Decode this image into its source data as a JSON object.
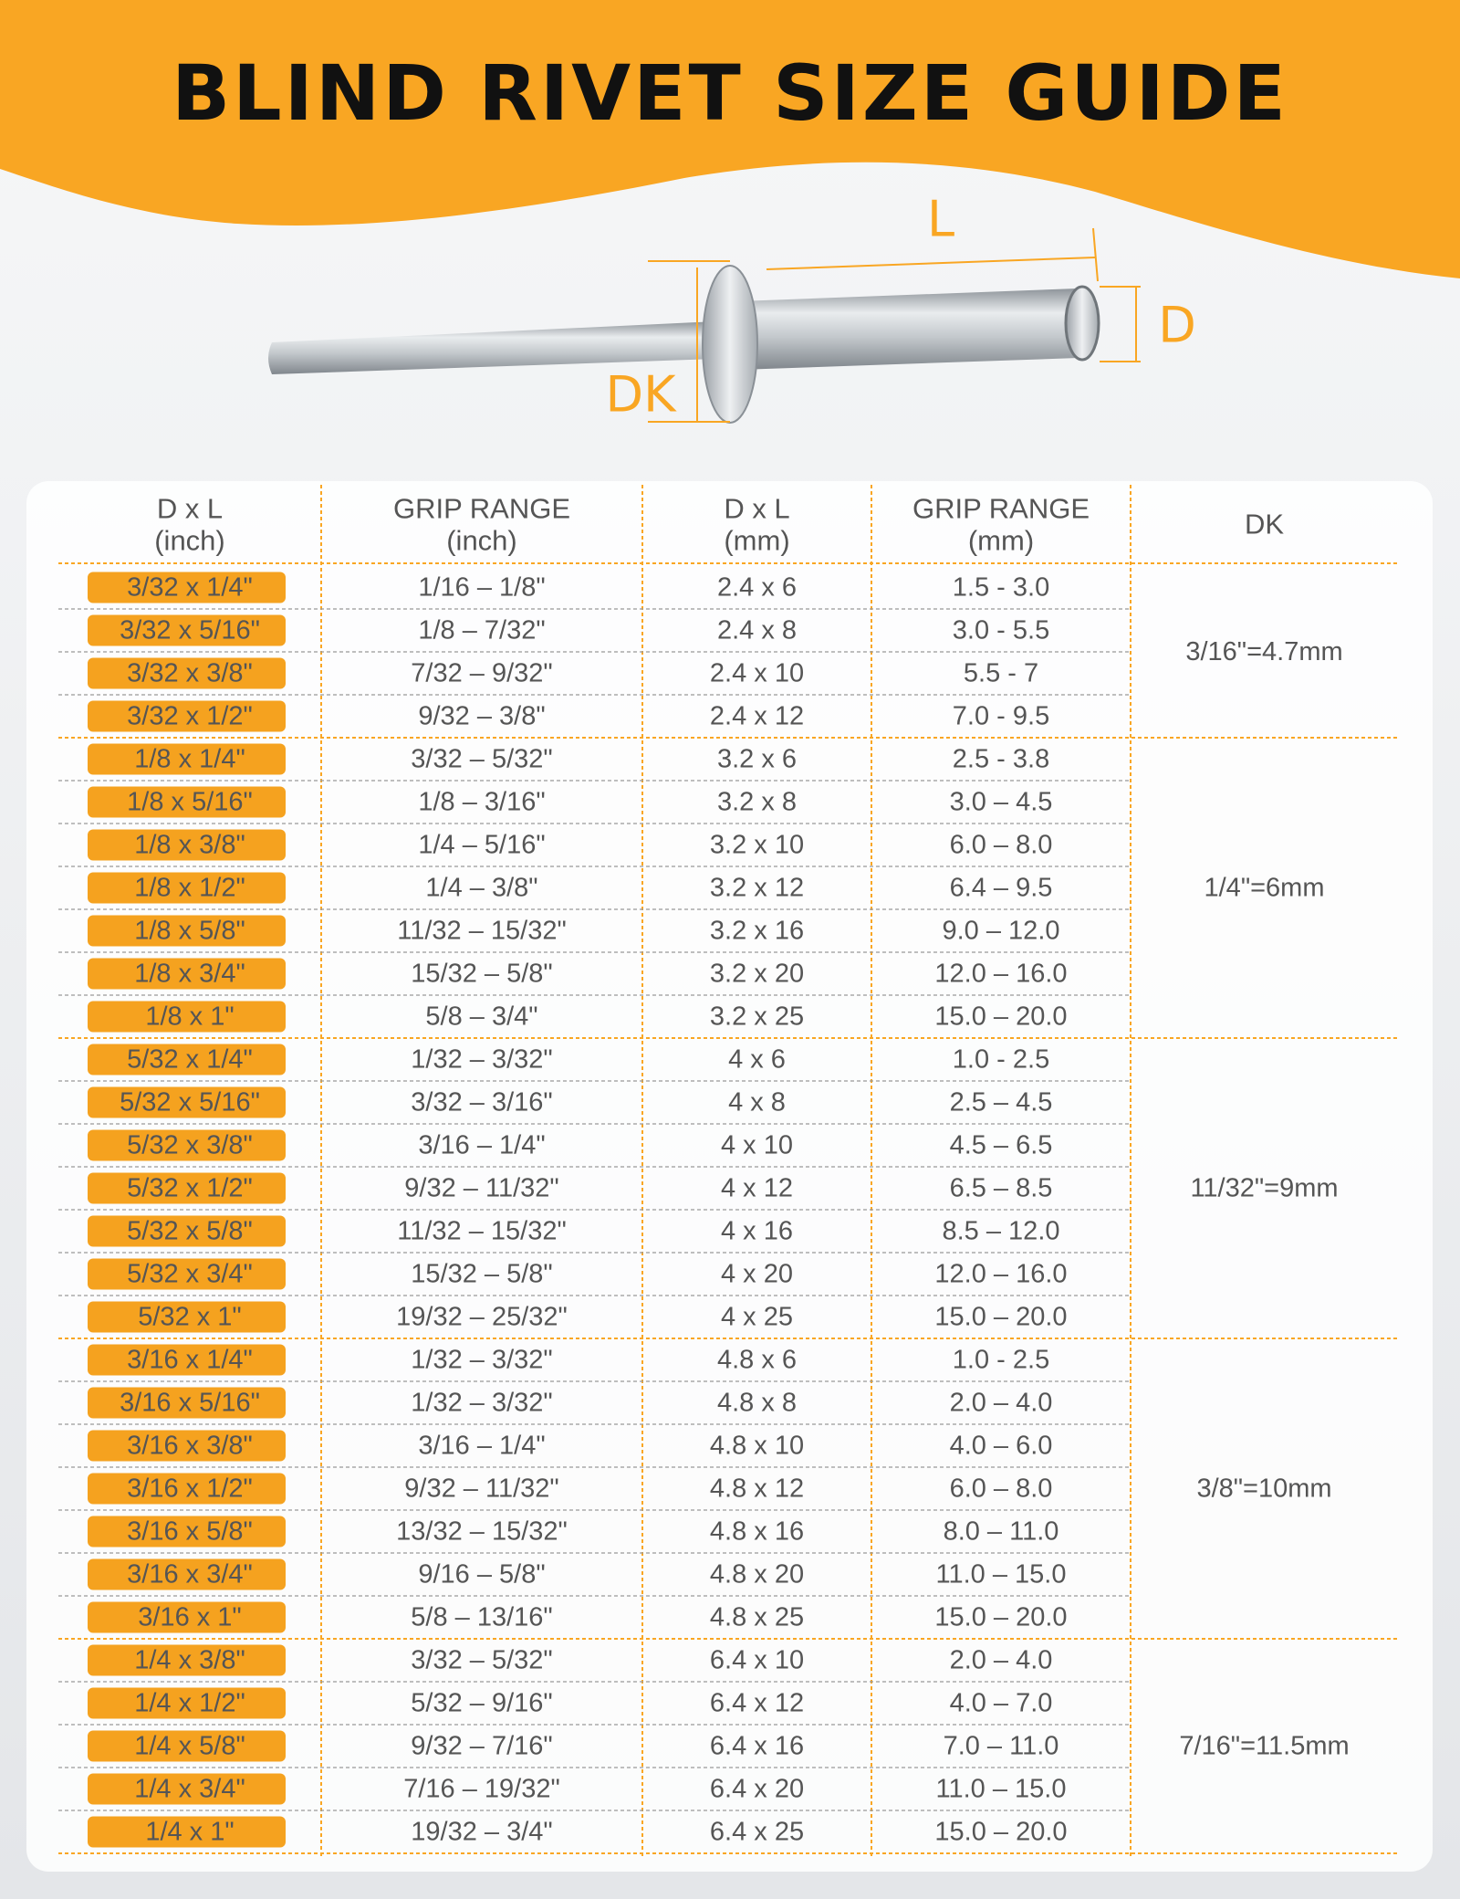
{
  "title": "BLIND RIVET SIZE GUIDE",
  "diagram": {
    "length_label": "L",
    "diameter_label": "D",
    "head_label": "DK"
  },
  "table": {
    "header": [
      [
        "D x L",
        "(inch)"
      ],
      [
        "GRIP RANGE",
        "(inch)"
      ],
      [
        "D x L",
        "(mm)"
      ],
      [
        "GRIP RANGE",
        "(mm)"
      ],
      [
        "DK"
      ]
    ],
    "groups": [
      {
        "dk": "3/16\"=4.7mm",
        "rows": [
          [
            "3/32 x 1/4\"",
            "1/16 – 1/8\"",
            "2.4 x 6",
            "1.5 - 3.0"
          ],
          [
            "3/32 x 5/16\"",
            "1/8 – 7/32\"",
            "2.4 x 8",
            "3.0 - 5.5"
          ],
          [
            "3/32 x 3/8\"",
            "7/32 – 9/32\"",
            "2.4 x 10",
            "5.5 - 7"
          ],
          [
            "3/32 x 1/2\"",
            "9/32 – 3/8\"",
            "2.4 x 12",
            "7.0 - 9.5"
          ]
        ]
      },
      {
        "dk": "1/4\"=6mm",
        "rows": [
          [
            "1/8 x 1/4\"",
            "3/32 – 5/32\"",
            "3.2 x 6",
            "2.5 - 3.8"
          ],
          [
            "1/8 x 5/16\"",
            "1/8 – 3/16\"",
            "3.2 x 8",
            "3.0 – 4.5"
          ],
          [
            "1/8 x 3/8\"",
            "1/4 – 5/16\"",
            "3.2 x 10",
            "6.0 – 8.0"
          ],
          [
            "1/8 x 1/2\"",
            "1/4 – 3/8\"",
            "3.2 x 12",
            "6.4 – 9.5"
          ],
          [
            "1/8 x 5/8\"",
            "11/32 – 15/32\"",
            "3.2 x 16",
            "9.0 – 12.0"
          ],
          [
            "1/8 x 3/4\"",
            "15/32 – 5/8\"",
            "3.2 x 20",
            "12.0 – 16.0"
          ],
          [
            "1/8 x 1\"",
            "5/8 – 3/4\"",
            "3.2 x 25",
            "15.0 – 20.0"
          ]
        ]
      },
      {
        "dk": "11/32\"=9mm",
        "rows": [
          [
            "5/32 x 1/4\"",
            "1/32 – 3/32\"",
            "4 x 6",
            "1.0 - 2.5"
          ],
          [
            "5/32 x 5/16\"",
            "3/32 – 3/16\"",
            "4 x 8",
            "2.5 – 4.5"
          ],
          [
            "5/32 x 3/8\"",
            "3/16 – 1/4\"",
            "4 x 10",
            "4.5 – 6.5"
          ],
          [
            "5/32 x 1/2\"",
            "9/32 – 11/32\"",
            "4 x 12",
            "6.5 – 8.5"
          ],
          [
            "5/32 x 5/8\"",
            "11/32 – 15/32\"",
            "4 x 16",
            "8.5 – 12.0"
          ],
          [
            "5/32 x 3/4\"",
            "15/32 – 5/8\"",
            "4 x 20",
            "12.0 – 16.0"
          ],
          [
            "5/32 x 1\"",
            "19/32 – 25/32\"",
            "4 x 25",
            "15.0 – 20.0"
          ]
        ]
      },
      {
        "dk": "3/8\"=10mm",
        "rows": [
          [
            "3/16 x 1/4\"",
            "1/32 – 3/32\"",
            "4.8 x 6",
            "1.0 - 2.5"
          ],
          [
            "3/16 x 5/16\"",
            "1/32 – 3/32\"",
            "4.8 x 8",
            "2.0 – 4.0"
          ],
          [
            "3/16 x 3/8\"",
            "3/16 – 1/4\"",
            "4.8 x 10",
            "4.0 – 6.0"
          ],
          [
            "3/16 x 1/2\"",
            "9/32 – 11/32\"",
            "4.8 x 12",
            "6.0 – 8.0"
          ],
          [
            "3/16 x 5/8\"",
            "13/32 – 15/32\"",
            "4.8 x 16",
            "8.0 – 11.0"
          ],
          [
            "3/16 x 3/4\"",
            "9/16 – 5/8\"",
            "4.8 x 20",
            "11.0 – 15.0"
          ],
          [
            "3/16 x 1\"",
            "5/8 – 13/16\"",
            "4.8 x 25",
            "15.0 – 20.0"
          ]
        ]
      },
      {
        "dk": "7/16\"=11.5mm",
        "rows": [
          [
            "1/4 x 3/8\"",
            "3/32 – 5/32\"",
            "6.4 x 10",
            "2.0 – 4.0"
          ],
          [
            "1/4 x 1/2\"",
            "5/32 – 9/16\"",
            "6.4 x 12",
            "4.0 – 7.0"
          ],
          [
            "1/4 x 5/8\"",
            "9/32 – 7/16\"",
            "6.4 x 16",
            "7.0 – 11.0"
          ],
          [
            "1/4 x 3/4\"",
            "7/16 – 19/32\"",
            "6.4 x 20",
            "11.0 – 15.0"
          ],
          [
            "1/4 x 1\"",
            "19/32 – 3/4\"",
            "6.4 x 25",
            "15.0 – 20.0"
          ]
        ]
      }
    ]
  }
}
